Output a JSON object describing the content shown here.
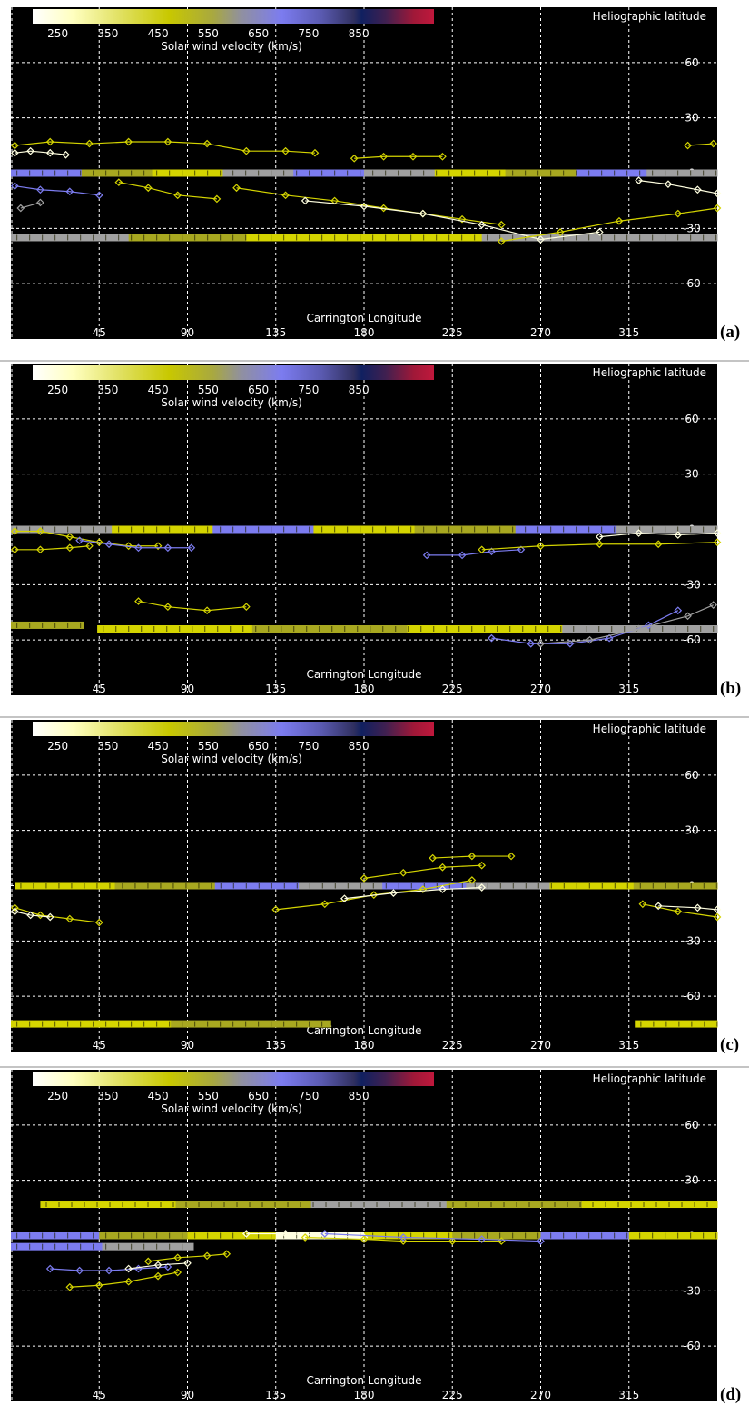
{
  "colorbar": {
    "ticks": [
      "250",
      "350",
      "450",
      "550",
      "650",
      "750",
      "850"
    ],
    "label": "Solar wind velocity (km/s)",
    "tick_values": [
      250,
      350,
      450,
      550,
      650,
      750,
      850
    ]
  },
  "axes": {
    "x_label": "Carrington Longitude",
    "y_label": "Heliographic latitude",
    "x_ticks": [
      "45",
      "90",
      "135",
      "180",
      "225",
      "270",
      "315"
    ],
    "y_ticks": [
      "60",
      "30",
      "0",
      "-30",
      "-60"
    ],
    "x_tick_values": [
      45,
      90,
      135,
      180,
      225,
      270,
      315
    ],
    "y_tick_values": [
      60,
      30,
      0,
      -30,
      -60
    ]
  },
  "colors": {
    "background": "#000000",
    "grid": "#ffffff",
    "yellow": "#d4d400",
    "olive": "#a8a820",
    "slate": "#7c7cf0",
    "gray": "#a0a0a0",
    "white": "#ffffe0"
  },
  "chart_data": [
    {
      "type": "scatter",
      "panel": "(a)",
      "xlim": [
        0,
        360
      ],
      "ylim": [
        -90,
        90
      ],
      "grid": true,
      "bands": [
        {
          "lat": 0,
          "from": 0,
          "to": 360,
          "colors": [
            "slate",
            "olive",
            "yellow",
            "gray",
            "slate",
            "gray",
            "yellow",
            "olive",
            "slate",
            "gray"
          ]
        },
        {
          "lat": -35,
          "from": 0,
          "to": 360,
          "colors": [
            "gray",
            "olive",
            "yellow",
            "yellow",
            "gray",
            "gray"
          ]
        }
      ],
      "series": [
        {
          "color": "yellow",
          "points": [
            [
              2,
              15
            ],
            [
              20,
              17
            ],
            [
              40,
              16
            ],
            [
              60,
              17
            ],
            [
              80,
              17
            ],
            [
              100,
              16
            ],
            [
              120,
              12
            ],
            [
              140,
              12
            ],
            [
              155,
              11
            ]
          ]
        },
        {
          "color": "white",
          "points": [
            [
              2,
              11
            ],
            [
              10,
              12
            ],
            [
              20,
              11
            ],
            [
              28,
              10
            ]
          ]
        },
        {
          "color": "slate",
          "points": [
            [
              2,
              -7
            ],
            [
              15,
              -9
            ],
            [
              30,
              -10
            ],
            [
              45,
              -12
            ]
          ]
        },
        {
          "color": "gray",
          "points": [
            [
              5,
              -19
            ],
            [
              15,
              -16
            ]
          ]
        },
        {
          "color": "yellow",
          "points": [
            [
              55,
              -5
            ],
            [
              70,
              -8
            ],
            [
              85,
              -12
            ],
            [
              105,
              -14
            ]
          ]
        },
        {
          "color": "yellow",
          "points": [
            [
              115,
              -8
            ],
            [
              140,
              -12
            ],
            [
              165,
              -15
            ],
            [
              190,
              -19
            ],
            [
              210,
              -22
            ],
            [
              230,
              -25
            ],
            [
              250,
              -28
            ]
          ]
        },
        {
          "color": "white",
          "points": [
            [
              150,
              -15
            ],
            [
              180,
              -18
            ],
            [
              210,
              -22
            ],
            [
              240,
              -28
            ],
            [
              270,
              -36
            ],
            [
              300,
              -32
            ]
          ]
        },
        {
          "color": "yellow",
          "points": [
            [
              250,
              -37
            ],
            [
              280,
              -32
            ],
            [
              310,
              -26
            ],
            [
              340,
              -22
            ],
            [
              360,
              -19
            ]
          ]
        },
        {
          "color": "yellow",
          "points": [
            [
              175,
              8
            ],
            [
              190,
              9
            ],
            [
              205,
              9
            ],
            [
              220,
              9
            ]
          ]
        },
        {
          "color": "yellow",
          "points": [
            [
              345,
              15
            ],
            [
              358,
              16
            ]
          ]
        },
        {
          "color": "white",
          "points": [
            [
              320,
              -4
            ],
            [
              335,
              -6
            ],
            [
              350,
              -9
            ],
            [
              360,
              -11
            ]
          ]
        }
      ]
    },
    {
      "type": "scatter",
      "panel": "(b)",
      "xlim": [
        0,
        360
      ],
      "ylim": [
        -90,
        90
      ],
      "grid": true,
      "bands": [
        {
          "lat": 0,
          "from": 0,
          "to": 360,
          "colors": [
            "gray",
            "yellow",
            "slate",
            "yellow",
            "olive",
            "slate",
            "gray"
          ]
        },
        {
          "lat": -52,
          "from": 0,
          "to": 37,
          "colors": [
            "olive"
          ]
        },
        {
          "lat": -54,
          "from": 44,
          "to": 360,
          "colors": [
            "yellow",
            "olive",
            "yellow",
            "gray"
          ]
        }
      ],
      "series": [
        {
          "color": "yellow",
          "points": [
            [
              2,
              -1
            ],
            [
              15,
              -1
            ],
            [
              30,
              -4
            ],
            [
              45,
              -7
            ],
            [
              60,
              -9
            ],
            [
              75,
              -9
            ]
          ]
        },
        {
          "color": "yellow",
          "points": [
            [
              2,
              -11
            ],
            [
              15,
              -11
            ],
            [
              30,
              -10
            ],
            [
              40,
              -9
            ]
          ]
        },
        {
          "color": "slate",
          "points": [
            [
              35,
              -6
            ],
            [
              50,
              -8
            ],
            [
              65,
              -10
            ],
            [
              80,
              -10
            ],
            [
              92,
              -10
            ]
          ]
        },
        {
          "color": "slate",
          "points": [
            [
              212,
              -14
            ],
            [
              230,
              -14
            ],
            [
              245,
              -12
            ],
            [
              260,
              -11
            ]
          ]
        },
        {
          "color": "yellow",
          "points": [
            [
              240,
              -11
            ],
            [
              270,
              -9
            ],
            [
              300,
              -8
            ],
            [
              330,
              -8
            ],
            [
              360,
              -7
            ]
          ]
        },
        {
          "color": "white",
          "points": [
            [
              300,
              -4
            ],
            [
              320,
              -2
            ],
            [
              340,
              -3
            ],
            [
              360,
              -2
            ]
          ]
        },
        {
          "color": "yellow",
          "points": [
            [
              65,
              -39
            ],
            [
              80,
              -42
            ],
            [
              100,
              -44
            ],
            [
              120,
              -42
            ]
          ]
        },
        {
          "color": "slate",
          "points": [
            [
              245,
              -59
            ],
            [
              265,
              -62
            ],
            [
              285,
              -62
            ],
            [
              305,
              -59
            ],
            [
              325,
              -52
            ],
            [
              340,
              -44
            ]
          ]
        },
        {
          "color": "gray",
          "points": [
            [
              270,
              -62
            ],
            [
              295,
              -60
            ],
            [
              320,
              -54
            ],
            [
              345,
              -47
            ],
            [
              358,
              -41
            ]
          ]
        }
      ]
    },
    {
      "type": "scatter",
      "panel": "(c)",
      "xlim": [
        0,
        360
      ],
      "ylim": [
        -90,
        90
      ],
      "grid": true,
      "bands": [
        {
          "lat": 0,
          "from": 2,
          "to": 104,
          "colors": [
            "yellow",
            "olive"
          ]
        },
        {
          "lat": 0,
          "from": 104,
          "to": 360,
          "colors": [
            "slate",
            "gray",
            "slate",
            "gray",
            "yellow",
            "olive"
          ]
        },
        {
          "lat": -75,
          "from": 0,
          "to": 163,
          "colors": [
            "yellow",
            "olive"
          ]
        },
        {
          "lat": -75,
          "from": 318,
          "to": 360,
          "colors": [
            "yellow"
          ]
        }
      ],
      "series": [
        {
          "color": "yellow",
          "points": [
            [
              2,
              -12
            ],
            [
              15,
              -16
            ],
            [
              30,
              -18
            ],
            [
              45,
              -20
            ]
          ]
        },
        {
          "color": "white",
          "points": [
            [
              2,
              -14
            ],
            [
              10,
              -16
            ],
            [
              20,
              -17
            ]
          ]
        },
        {
          "color": "yellow",
          "points": [
            [
              135,
              -13
            ],
            [
              160,
              -10
            ],
            [
              185,
              -5
            ],
            [
              210,
              -2
            ],
            [
              235,
              3
            ]
          ]
        },
        {
          "color": "white",
          "points": [
            [
              170,
              -7
            ],
            [
              195,
              -4
            ],
            [
              220,
              -2
            ],
            [
              240,
              -1
            ]
          ]
        },
        {
          "color": "yellow",
          "points": [
            [
              180,
              4
            ],
            [
              200,
              7
            ],
            [
              220,
              10
            ],
            [
              240,
              11
            ]
          ]
        },
        {
          "color": "yellow",
          "points": [
            [
              215,
              15
            ],
            [
              235,
              16
            ],
            [
              255,
              16
            ]
          ]
        },
        {
          "color": "yellow",
          "points": [
            [
              322,
              -10
            ],
            [
              340,
              -14
            ],
            [
              360,
              -17
            ]
          ]
        },
        {
          "color": "white",
          "points": [
            [
              330,
              -11
            ],
            [
              350,
              -12
            ],
            [
              360,
              -13
            ]
          ]
        }
      ]
    },
    {
      "type": "scatter",
      "panel": "(d)",
      "xlim": [
        0,
        360
      ],
      "ylim": [
        -90,
        90
      ],
      "grid": true,
      "bands": [
        {
          "lat": 0,
          "from": 0,
          "to": 360,
          "colors": [
            "slate",
            "olive",
            "yellow",
            "white",
            "yellow",
            "olive",
            "slate",
            "yellow"
          ]
        },
        {
          "lat": 17,
          "from": 15,
          "to": 360,
          "colors": [
            "yellow",
            "olive",
            "gray",
            "olive",
            "yellow"
          ]
        },
        {
          "lat": -6,
          "from": 0,
          "to": 93,
          "colors": [
            "slate",
            "gray"
          ]
        }
      ],
      "series": [
        {
          "color": "slate",
          "points": [
            [
              20,
              -18
            ],
            [
              35,
              -19
            ],
            [
              50,
              -19
            ],
            [
              65,
              -18
            ],
            [
              80,
              -17
            ]
          ]
        },
        {
          "color": "white",
          "points": [
            [
              60,
              -18
            ],
            [
              75,
              -16
            ],
            [
              90,
              -15
            ]
          ]
        },
        {
          "color": "yellow",
          "points": [
            [
              70,
              -14
            ],
            [
              85,
              -12
            ],
            [
              100,
              -11
            ],
            [
              110,
              -10
            ]
          ]
        },
        {
          "color": "yellow",
          "points": [
            [
              30,
              -28
            ],
            [
              45,
              -27
            ],
            [
              60,
              -25
            ],
            [
              75,
              -22
            ],
            [
              85,
              -20
            ]
          ]
        },
        {
          "color": "white",
          "points": [
            [
              120,
              1
            ],
            [
              140,
              1
            ],
            [
              160,
              0
            ],
            [
              180,
              -1
            ]
          ]
        },
        {
          "color": "yellow",
          "points": [
            [
              150,
              -1
            ],
            [
              180,
              -2
            ],
            [
              200,
              -3
            ],
            [
              225,
              -3
            ],
            [
              250,
              -3
            ]
          ]
        },
        {
          "color": "slate",
          "points": [
            [
              160,
              1
            ],
            [
              200,
              -1
            ],
            [
              240,
              -2
            ],
            [
              270,
              -3
            ]
          ]
        }
      ]
    }
  ]
}
